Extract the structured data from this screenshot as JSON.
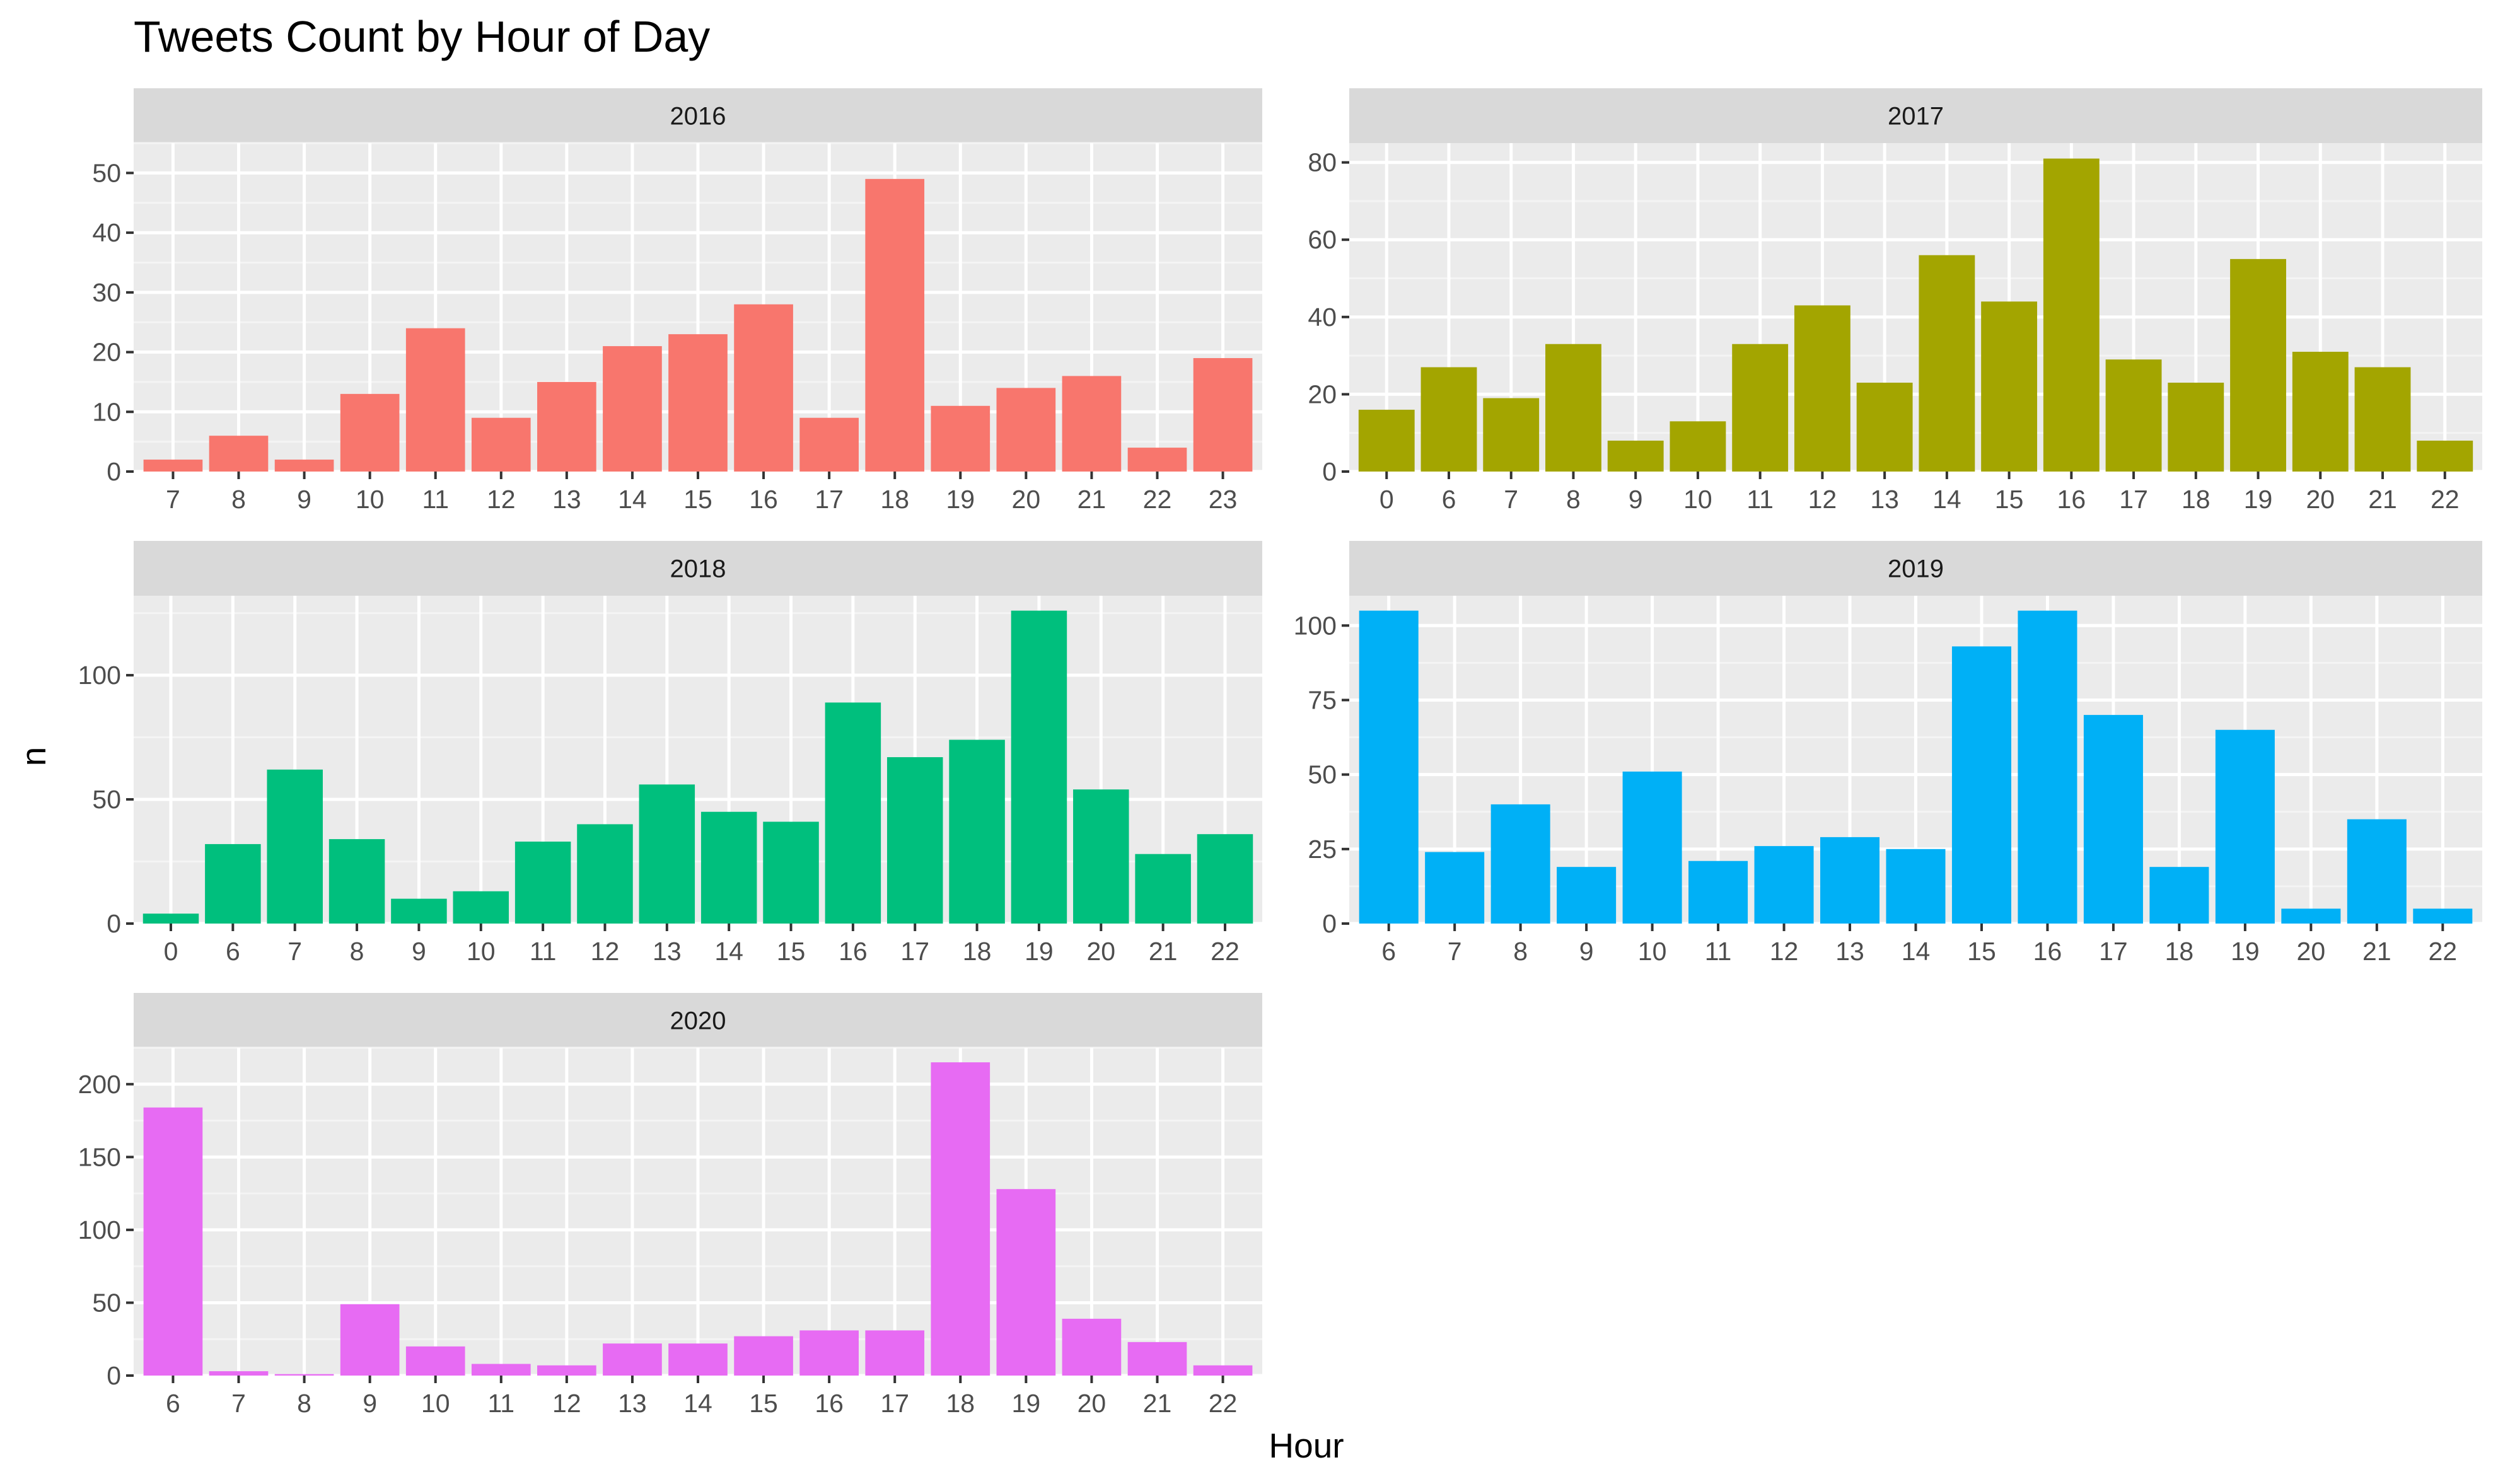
{
  "chart_data": {
    "type": "bar",
    "title": "Tweets Count by Hour of Day",
    "xlabel": "Hour",
    "ylabel": "n",
    "grid": true,
    "legend": "none",
    "panels": [
      {
        "name": "2016",
        "color": "#F8766D",
        "categories": [
          "7",
          "8",
          "9",
          "10",
          "11",
          "12",
          "13",
          "14",
          "15",
          "16",
          "17",
          "18",
          "19",
          "20",
          "21",
          "22",
          "23"
        ],
        "values": [
          2,
          6,
          2,
          13,
          24,
          9,
          15,
          21,
          23,
          28,
          9,
          49,
          11,
          14,
          16,
          4,
          19
        ],
        "ylim": [
          0,
          55
        ],
        "yticks": [
          0,
          10,
          20,
          30,
          40,
          50
        ]
      },
      {
        "name": "2017",
        "color": "#A3A500",
        "categories": [
          "0",
          "6",
          "7",
          "8",
          "9",
          "10",
          "11",
          "12",
          "13",
          "14",
          "15",
          "16",
          "17",
          "18",
          "19",
          "20",
          "21",
          "22"
        ],
        "values": [
          16,
          27,
          19,
          33,
          8,
          13,
          33,
          43,
          23,
          56,
          44,
          81,
          29,
          23,
          55,
          31,
          27,
          8
        ],
        "ylim": [
          0,
          85
        ],
        "yticks": [
          0,
          20,
          40,
          60,
          80
        ]
      },
      {
        "name": "2018",
        "color": "#00BF7D",
        "categories": [
          "0",
          "6",
          "7",
          "8",
          "9",
          "10",
          "11",
          "12",
          "13",
          "14",
          "15",
          "16",
          "17",
          "18",
          "19",
          "20",
          "21",
          "22"
        ],
        "values": [
          4,
          32,
          62,
          34,
          10,
          13,
          33,
          40,
          56,
          45,
          41,
          89,
          67,
          74,
          126,
          54,
          28,
          36
        ],
        "ylim": [
          0,
          132
        ],
        "yticks": [
          0,
          50,
          100
        ]
      },
      {
        "name": "2019",
        "color": "#00B0F6",
        "categories": [
          "6",
          "7",
          "8",
          "9",
          "10",
          "11",
          "12",
          "13",
          "14",
          "15",
          "16",
          "17",
          "18",
          "19",
          "20",
          "21",
          "22"
        ],
        "values": [
          105,
          24,
          40,
          19,
          51,
          21,
          26,
          29,
          25,
          93,
          105,
          70,
          19,
          65,
          5,
          35,
          5
        ],
        "ylim": [
          0,
          110
        ],
        "yticks": [
          0,
          25,
          50,
          75,
          100
        ],
        "yticklabels": [
          "0",
          "25",
          "50",
          "75",
          "100"
        ]
      },
      {
        "name": "2020",
        "color": "#E76BF3",
        "categories": [
          "6",
          "7",
          "8",
          "9",
          "10",
          "11",
          "12",
          "13",
          "14",
          "15",
          "16",
          "17",
          "18",
          "19",
          "20",
          "21",
          "22"
        ],
        "values": [
          184,
          3,
          1,
          49,
          20,
          8,
          7,
          22,
          22,
          27,
          31,
          31,
          215,
          128,
          39,
          23,
          7
        ],
        "ylim": [
          0,
          225
        ],
        "yticks": [
          0,
          50,
          100,
          150,
          200
        ]
      }
    ]
  }
}
